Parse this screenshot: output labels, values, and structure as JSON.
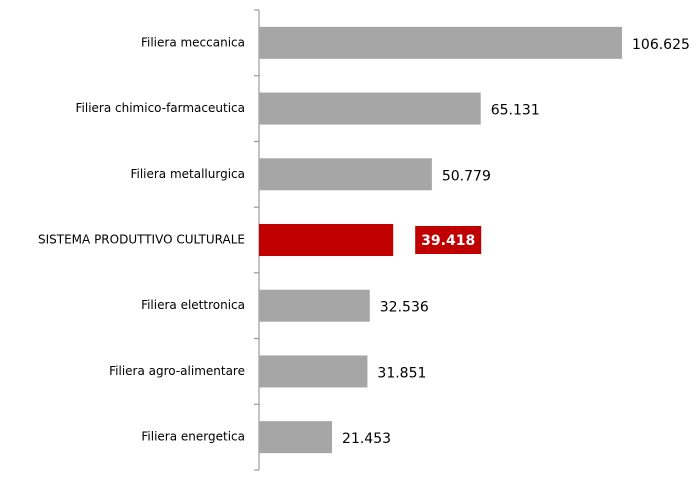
{
  "chart_data": {
    "type": "barh",
    "categories": [
      "Filiera meccanica",
      "Filiera chimico-farmaceutica",
      "Filiera metallurgica",
      "SISTEMA PRODUTTIVO CULTURALE",
      "Filiera elettronica",
      "Filiera agro-alimentare",
      "Filiera energetica"
    ],
    "values": [
      106625,
      65131,
      50779,
      39418,
      32536,
      31851,
      21453
    ],
    "value_labels": [
      "106.625",
      "65.131",
      "50.779",
      "39.418",
      "32.536",
      "31.851",
      "21.453"
    ],
    "colors": [
      "#a6a6a6",
      "#a6a6a6",
      "#a6a6a6",
      "#c00000",
      "#a6a6a6",
      "#a6a6a6",
      "#a6a6a6"
    ],
    "label_boxed": [
      false,
      false,
      false,
      true,
      false,
      false,
      false
    ]
  }
}
